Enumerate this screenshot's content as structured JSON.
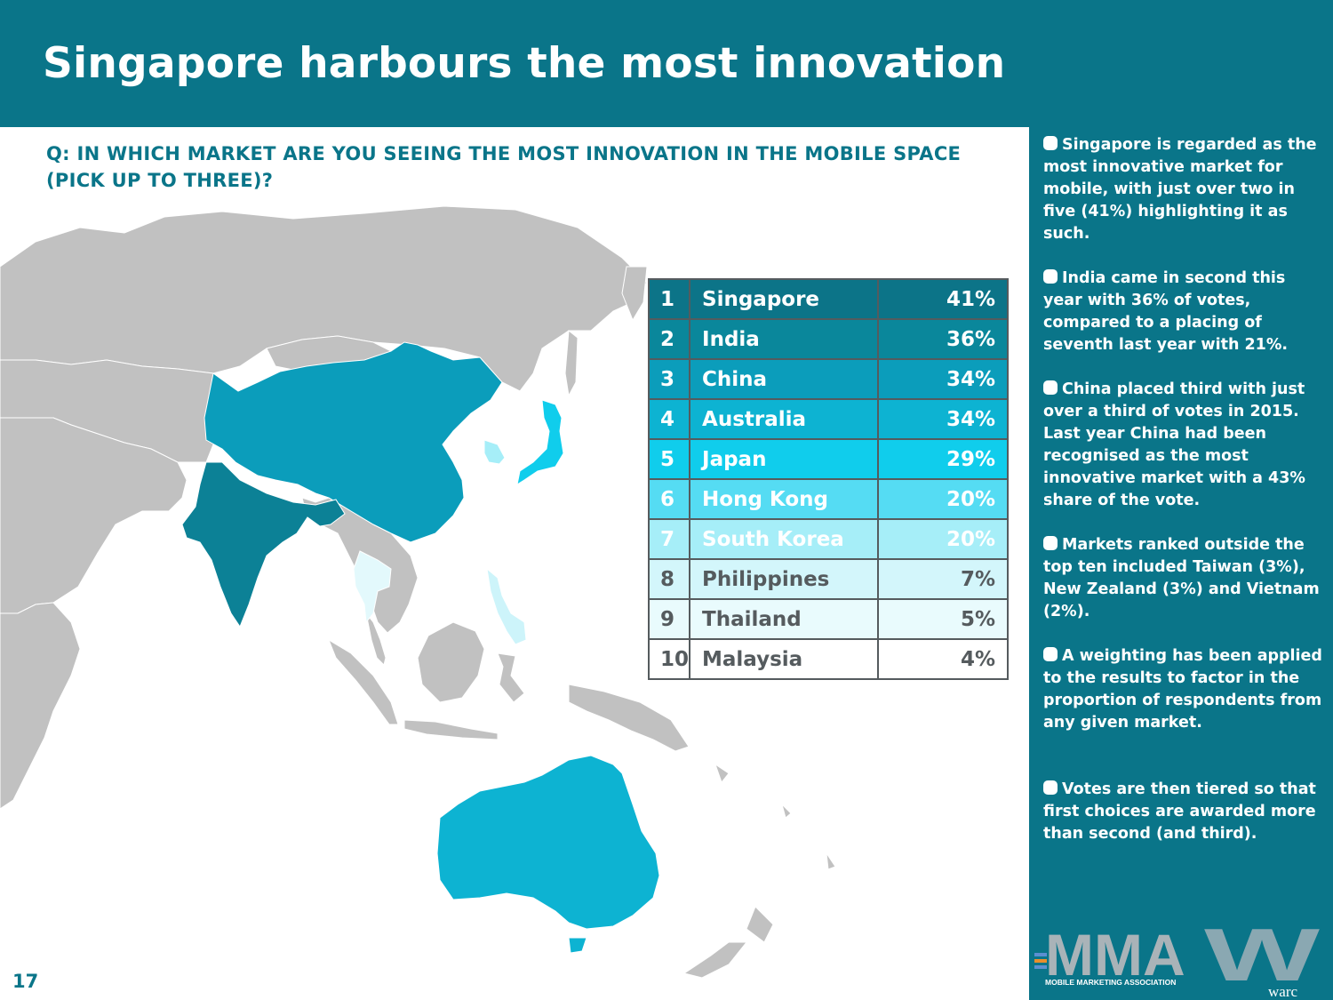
{
  "title": "Singapore harbours the most innovation",
  "question": "Q: IN WHICH MARKET ARE YOU SEEING THE MOST INNOVATION IN THE MOBILE SPACE (PICK UP TO THREE)?",
  "ranking": [
    {
      "rank": "1",
      "market": "Singapore",
      "share": "41%",
      "color": "#0c7488",
      "text_color": "#ffffff"
    },
    {
      "rank": "2",
      "market": "India",
      "share": "36%",
      "color": "#0a879b",
      "text_color": "#ffffff"
    },
    {
      "rank": "3",
      "market": "China",
      "share": "34%",
      "color": "#0b9dbb",
      "text_color": "#ffffff"
    },
    {
      "rank": "4",
      "market": "Australia",
      "share": "34%",
      "color": "#0db3d2",
      "text_color": "#ffffff"
    },
    {
      "rank": "5",
      "market": "Japan",
      "share": "29%",
      "color": "#10cdec",
      "text_color": "#ffffff"
    },
    {
      "rank": "6",
      "market": "Hong Kong",
      "share": "20%",
      "color": "#55dcf3",
      "text_color": "#ffffff"
    },
    {
      "rank": "7",
      "market": "South Korea",
      "share": "20%",
      "color": "#a6eef8",
      "text_color": "#ffffff"
    },
    {
      "rank": "8",
      "market": "Philippines",
      "share": "7%",
      "color": "#d3f6fb",
      "text_color": "#555b5e"
    },
    {
      "rank": "9",
      "market": "Thailand",
      "share": "5%",
      "color": "#e9fbfd",
      "text_color": "#555b5e"
    },
    {
      "rank": "10",
      "market": "Malaysia",
      "share": "4%",
      "color": "#ffffff",
      "text_color": "#555b5e"
    }
  ],
  "bullets": [
    "Singapore is regarded as the most innovative market for mobile, with just over two in five (41%) highlighting it as such.",
    "India came in second this year with 36% of votes, compared to a placing of seventh last year with 21%.",
    "China placed third with just over a third of votes in 2015. Last year China had been recognised as the most innovative market with a 43% share of the vote.",
    "Markets ranked outside the top ten included Taiwan (3%), New Zealand (3%) and Vietnam (2%).",
    "A weighting has been applied to the results to factor in the proportion of respondents from any given market.",
    "Votes are then tiered so that first choices are awarded more than second (and third)."
  ],
  "page_number": "17",
  "logos": {
    "mma_letters": "MMA",
    "mma_tagline": "MOBILE MARKETING ASSOCIATION",
    "warc_letters": "W",
    "warc_name": "warc"
  },
  "map_colors": {
    "land": "#c1c1c1",
    "india": "#0c8196",
    "china": "#0b9dbb",
    "australia": "#0db3d2",
    "japan": "#10cdec",
    "south_korea": "#a6eef8",
    "philippines": "#cdf4fa",
    "thailand": "#e3f9fc"
  }
}
